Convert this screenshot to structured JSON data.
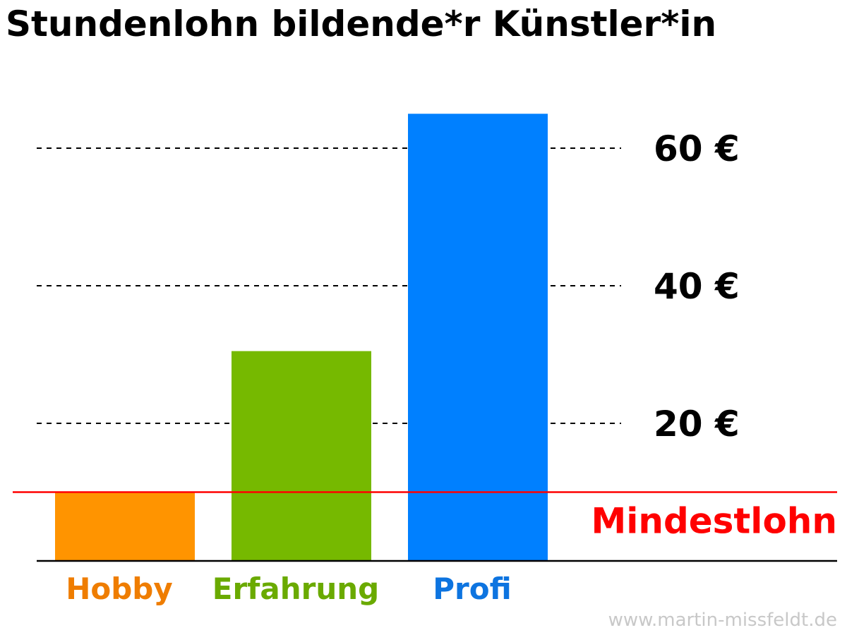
{
  "chart_data": {
    "type": "bar",
    "title": "Stundenlohn bildende*r Künstler*in",
    "categories": [
      "Hobby",
      "Erfahrung",
      "Profi"
    ],
    "values": [
      10,
      30.5,
      65
    ],
    "colors": [
      "#ff9400",
      "#76b900",
      "#0080ff"
    ],
    "label_colors": [
      "#ef7d00",
      "#6aaa00",
      "#0d74e0"
    ],
    "y_ticks": [
      {
        "value": 20,
        "label": "20 €"
      },
      {
        "value": 40,
        "label": "40 €"
      },
      {
        "value": 60,
        "label": "60 €"
      }
    ],
    "ylim": [
      0,
      65
    ],
    "grid": "dashed horizontal lines at tick values",
    "reference_line": {
      "value": 10,
      "label": "Mindestlohn",
      "color": "#ff0000"
    },
    "xlabel": "",
    "ylabel": ""
  },
  "watermark": "www.martin-missfeldt.de"
}
